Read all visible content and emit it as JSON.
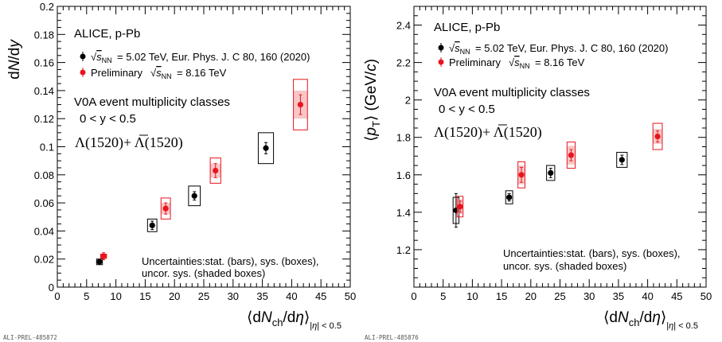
{
  "colors": {
    "black_series": "#000000",
    "red_series": "#e8141e",
    "shade_red": "#f4a0a0",
    "shade_gray": "#bbbbbb"
  },
  "chart_data": [
    {
      "type": "scatter",
      "ylabel": "dN/dy",
      "xlabel": "⟨dNch/dη⟩|η| < 0.5",
      "xlim": [
        0,
        50
      ],
      "ylim": [
        0,
        0.2
      ],
      "x_ticks": [
        "0",
        "5",
        "10",
        "15",
        "20",
        "25",
        "30",
        "35",
        "40",
        "45",
        "50"
      ],
      "y_ticks": [
        "0",
        "0.02",
        "0.04",
        "0.06",
        "0.08",
        "0.1",
        "0.12",
        "0.14",
        "0.16",
        "0.18",
        "0.2"
      ],
      "texts": {
        "system": "ALICE, p-Pb",
        "legend_black": "= 5.02 TeV, Eur. Phys. J. C 80, 160 (2020)",
        "legend_red_prefix": "Preliminary",
        "legend_red": "= 8.16 TeV",
        "class_line": "V0A event multiplicity classes",
        "rapidity": "0 < y < 0.5",
        "particle": "Λ(1520)+ Λ(1520)",
        "uncert1": "Uncertainties:stat. (bars), sys. (boxes),",
        "uncert2": "uncor. sys. (shaded boxes)"
      },
      "watermark": "ALI-PREL-485872",
      "series": [
        {
          "name": "= 5.02 TeV, Eur. Phys. J. C 80, 160 (2020)",
          "color": "#000000",
          "points": [
            {
              "x": 7.2,
              "y": 0.018,
              "stat": 0.001,
              "sys": 0.002,
              "uncor": 0.0,
              "bw": 0.5
            },
            {
              "x": 16.2,
              "y": 0.044,
              "stat": 0.003,
              "sys": 0.0045,
              "uncor": 0.0,
              "bw": 0.8
            },
            {
              "x": 23.4,
              "y": 0.065,
              "stat": 0.003,
              "sys": 0.007,
              "uncor": 0.0,
              "bw": 1.0
            },
            {
              "x": 35.6,
              "y": 0.099,
              "stat": 0.004,
              "sys": 0.011,
              "uncor": 0.0,
              "bw": 1.3
            }
          ]
        },
        {
          "name": "Preliminary = 8.16 TeV",
          "color": "#e8141e",
          "points": [
            {
              "x": 7.9,
              "y": 0.022,
              "stat": 0.0025,
              "sys": 0.0015,
              "uncor": 0.001,
              "bw": 0.5
            },
            {
              "x": 18.5,
              "y": 0.056,
              "stat": 0.004,
              "sys": 0.0075,
              "uncor": 0.004,
              "bw": 0.8
            },
            {
              "x": 27.0,
              "y": 0.083,
              "stat": 0.005,
              "sys": 0.009,
              "uncor": 0.005,
              "bw": 0.9
            },
            {
              "x": 41.5,
              "y": 0.13,
              "stat": 0.007,
              "sys": 0.018,
              "uncor": 0.01,
              "bw": 1.2
            }
          ]
        }
      ]
    },
    {
      "type": "scatter",
      "ylabel": "⟨pT⟩ (GeV/c)",
      "xlabel": "⟨dNch/dη⟩|η| < 0.5",
      "xlim": [
        0,
        50
      ],
      "ylim": [
        1.0,
        2.5
      ],
      "x_ticks": [
        "0",
        "5",
        "10",
        "15",
        "20",
        "25",
        "30",
        "35",
        "40",
        "45",
        "50"
      ],
      "y_ticks": [
        "1.2",
        "1.4",
        "1.6",
        "1.8",
        "2",
        "2.2",
        "2.4"
      ],
      "texts": {
        "system": "ALICE, p-Pb",
        "legend_black": "= 5.02 TeV, Eur. Phys. J. C 80, 160 (2020)",
        "legend_red_prefix": "Preliminary",
        "legend_red": "= 8.16 TeV",
        "class_line": "V0A event multiplicity classes",
        "rapidity": "0 < y < 0.5",
        "particle": "Λ(1520)+ Λ(1520)",
        "uncert1": "Uncertainties:stat. (bars), sys. (boxes),",
        "uncert2": "uncor. sys. (shaded boxes)"
      },
      "watermark": "ALI-PREL-485876",
      "series": [
        {
          "name": "= 5.02 TeV, Eur. Phys. J. C 80, 160 (2020)",
          "color": "#000000",
          "points": [
            {
              "x": 7.2,
              "y": 1.41,
              "stat": 0.09,
              "sys": 0.07,
              "uncor": 0.0,
              "bw": 0.5
            },
            {
              "x": 16.3,
              "y": 1.48,
              "stat": 0.02,
              "sys": 0.035,
              "uncor": 0.0,
              "bw": 0.6
            },
            {
              "x": 23.4,
              "y": 1.61,
              "stat": 0.025,
              "sys": 0.04,
              "uncor": 0.0,
              "bw": 0.7
            },
            {
              "x": 35.6,
              "y": 1.68,
              "stat": 0.025,
              "sys": 0.04,
              "uncor": 0.0,
              "bw": 0.9
            }
          ]
        },
        {
          "name": "Preliminary = 8.16 TeV",
          "color": "#e8141e",
          "points": [
            {
              "x": 7.9,
              "y": 1.43,
              "stat": 0.03,
              "sys": 0.055,
              "uncor": 0.04,
              "bw": 0.5
            },
            {
              "x": 18.4,
              "y": 1.6,
              "stat": 0.04,
              "sys": 0.07,
              "uncor": 0.05,
              "bw": 0.6
            },
            {
              "x": 26.9,
              "y": 1.705,
              "stat": 0.03,
              "sys": 0.07,
              "uncor": 0.05,
              "bw": 0.7
            },
            {
              "x": 41.7,
              "y": 1.805,
              "stat": 0.03,
              "sys": 0.07,
              "uncor": 0.04,
              "bw": 0.8
            }
          ]
        }
      ]
    }
  ]
}
